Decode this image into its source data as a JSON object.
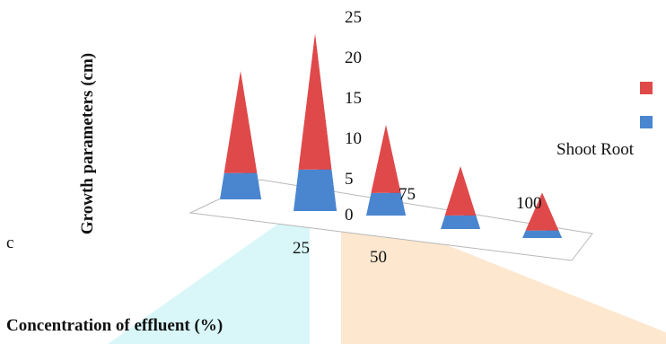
{
  "panel_label": "c",
  "chart_data": {
    "type": "bar",
    "style": "3d-pyramid-stacked",
    "ylabel": "Growth parameters (cm)",
    "xlabel": "Concentration of effluent (%)",
    "ylim": [
      0,
      25
    ],
    "yticks": [
      "0",
      "5",
      "10",
      "15",
      "20",
      "25"
    ],
    "categories": [
      "0",
      "25",
      "50",
      "75",
      "100"
    ],
    "series": [
      {
        "name": "Root",
        "color": "#4a86d0",
        "values": [
          3.5,
          5.5,
          3.0,
          1.8,
          1.0
        ]
      },
      {
        "name": "Shoot",
        "color": "#e0494a",
        "values": [
          13.5,
          18.0,
          9.0,
          6.5,
          5.0
        ]
      }
    ],
    "legend": {
      "text": "Shoot Root",
      "placement": "right"
    },
    "watermark_colors": [
      "#d9f7f8",
      "#fde7cf"
    ]
  }
}
